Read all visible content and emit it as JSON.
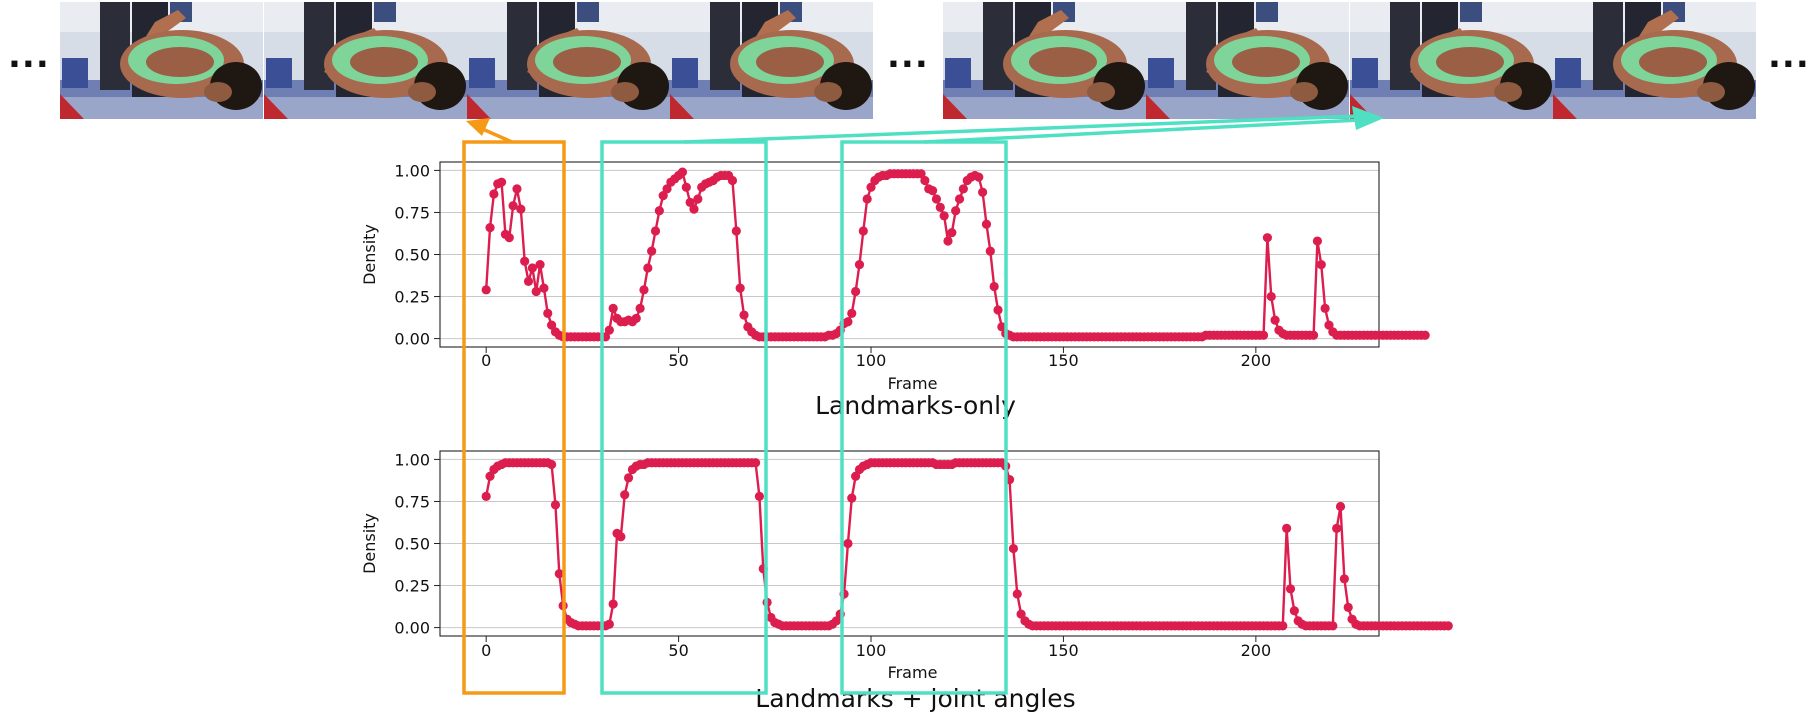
{
  "strip": {
    "ellipsis": "...",
    "frames": [
      {
        "id": "frame-1"
      },
      {
        "id": "frame-2"
      },
      {
        "id": "frame-3"
      },
      {
        "id": "frame-4"
      },
      {
        "id": "frame-5"
      },
      {
        "id": "frame-6"
      },
      {
        "id": "frame-7"
      },
      {
        "id": "frame-8"
      }
    ]
  },
  "colors": {
    "series": "#dc1e4f",
    "orange_box": "#f59a16",
    "teal_box": "#4fe0c3"
  },
  "chart_data": [
    {
      "type": "line",
      "title": "Landmarks-only",
      "xlabel": "Frame",
      "ylabel": "Density",
      "xlim": [
        -12,
        232
      ],
      "ylim": [
        -0.05,
        1.05
      ],
      "xticks": [
        0,
        50,
        100,
        150,
        200
      ],
      "yticks": [
        "0.00",
        "0.25",
        "0.50",
        "0.75",
        "1.00"
      ],
      "grid": "horizontal",
      "series": [
        {
          "y": [
            0.29,
            0.66,
            0.86,
            0.92,
            0.93,
            0.62,
            0.6,
            0.79,
            0.89,
            0.77,
            0.46,
            0.34,
            0.42,
            0.28,
            0.44,
            0.3,
            0.15,
            0.08,
            0.04,
            0.02,
            0.01,
            0.01,
            0.01,
            0.01,
            0.01,
            0.01,
            0.01,
            0.01,
            0.01,
            0.01,
            0.01,
            0.01,
            0.05,
            0.18,
            0.12,
            0.1,
            0.1,
            0.11,
            0.1,
            0.12,
            0.18,
            0.29,
            0.42,
            0.52,
            0.64,
            0.76,
            0.85,
            0.89,
            0.93,
            0.95,
            0.97,
            0.99,
            0.9,
            0.81,
            0.77,
            0.83,
            0.9,
            0.92,
            0.93,
            0.94,
            0.96,
            0.97,
            0.97,
            0.97,
            0.94,
            0.64,
            0.3,
            0.14,
            0.07,
            0.04,
            0.02,
            0.01,
            0.01,
            0.01,
            0.01,
            0.01,
            0.01,
            0.01,
            0.01,
            0.01,
            0.01,
            0.01,
            0.01,
            0.01,
            0.01,
            0.01,
            0.01,
            0.01,
            0.01,
            0.02,
            0.02,
            0.03,
            0.05,
            0.09,
            0.1,
            0.15,
            0.28,
            0.44,
            0.64,
            0.83,
            0.9,
            0.94,
            0.96,
            0.97,
            0.97,
            0.98,
            0.98,
            0.98,
            0.98,
            0.98,
            0.98,
            0.98,
            0.98,
            0.98,
            0.94,
            0.89,
            0.88,
            0.83,
            0.78,
            0.73,
            0.58,
            0.63,
            0.76,
            0.83,
            0.89,
            0.94,
            0.96,
            0.97,
            0.96,
            0.87,
            0.68,
            0.52,
            0.31,
            0.17,
            0.07,
            0.03,
            0.02,
            0.01,
            0.01,
            0.01,
            0.01,
            0.01,
            0.01,
            0.01,
            0.01,
            0.01,
            0.01,
            0.01,
            0.01,
            0.01,
            0.01,
            0.01,
            0.01,
            0.01,
            0.01,
            0.01,
            0.01,
            0.01,
            0.01,
            0.01,
            0.01,
            0.01,
            0.01,
            0.01,
            0.01,
            0.01,
            0.01,
            0.01,
            0.01,
            0.01,
            0.01,
            0.01,
            0.01,
            0.01,
            0.01,
            0.01,
            0.01,
            0.01,
            0.01,
            0.01,
            0.01,
            0.01,
            0.01,
            0.01,
            0.01,
            0.01,
            0.01,
            0.02,
            0.02,
            0.02,
            0.02,
            0.02,
            0.02,
            0.02,
            0.02,
            0.02,
            0.02,
            0.02,
            0.02,
            0.02,
            0.02,
            0.02,
            0.02,
            0.6,
            0.25,
            0.11,
            0.05,
            0.03,
            0.02,
            0.02,
            0.02,
            0.02,
            0.02,
            0.02,
            0.02,
            0.02,
            0.58,
            0.44,
            0.18,
            0.08,
            0.04,
            0.02,
            0.02,
            0.02,
            0.02,
            0.02,
            0.02,
            0.02,
            0.02,
            0.02,
            0.02,
            0.02,
            0.02,
            0.02,
            0.02,
            0.02,
            0.02,
            0.02,
            0.02,
            0.02,
            0.02,
            0.02,
            0.02,
            0.02,
            0.02
          ]
        }
      ]
    },
    {
      "type": "line",
      "title": "Landmarks + joint angles",
      "xlabel": "Frame",
      "ylabel": "Density",
      "xlim": [
        -12,
        232
      ],
      "ylim": [
        -0.05,
        1.05
      ],
      "xticks": [
        0,
        50,
        100,
        150,
        200
      ],
      "yticks": [
        "0.00",
        "0.25",
        "0.50",
        "0.75",
        "1.00"
      ],
      "grid": "horizontal",
      "series": [
        {
          "y": [
            0.78,
            0.9,
            0.94,
            0.96,
            0.97,
            0.98,
            0.98,
            0.98,
            0.98,
            0.98,
            0.98,
            0.98,
            0.98,
            0.98,
            0.98,
            0.98,
            0.98,
            0.97,
            0.73,
            0.32,
            0.13,
            0.05,
            0.03,
            0.02,
            0.01,
            0.01,
            0.01,
            0.01,
            0.01,
            0.01,
            0.01,
            0.01,
            0.02,
            0.14,
            0.56,
            0.54,
            0.79,
            0.89,
            0.94,
            0.96,
            0.97,
            0.97,
            0.98,
            0.98,
            0.98,
            0.98,
            0.98,
            0.98,
            0.98,
            0.98,
            0.98,
            0.98,
            0.98,
            0.98,
            0.98,
            0.98,
            0.98,
            0.98,
            0.98,
            0.98,
            0.98,
            0.98,
            0.98,
            0.98,
            0.98,
            0.98,
            0.98,
            0.98,
            0.98,
            0.98,
            0.98,
            0.78,
            0.35,
            0.15,
            0.06,
            0.03,
            0.02,
            0.01,
            0.01,
            0.01,
            0.01,
            0.01,
            0.01,
            0.01,
            0.01,
            0.01,
            0.01,
            0.01,
            0.01,
            0.01,
            0.02,
            0.04,
            0.08,
            0.2,
            0.5,
            0.77,
            0.9,
            0.94,
            0.96,
            0.97,
            0.98,
            0.98,
            0.98,
            0.98,
            0.98,
            0.98,
            0.98,
            0.98,
            0.98,
            0.98,
            0.98,
            0.98,
            0.98,
            0.98,
            0.98,
            0.98,
            0.98,
            0.97,
            0.97,
            0.97,
            0.97,
            0.97,
            0.98,
            0.98,
            0.98,
            0.98,
            0.98,
            0.98,
            0.98,
            0.98,
            0.98,
            0.98,
            0.98,
            0.98,
            0.98,
            0.96,
            0.88,
            0.47,
            0.2,
            0.08,
            0.04,
            0.02,
            0.01,
            0.01,
            0.01,
            0.01,
            0.01,
            0.01,
            0.01,
            0.01,
            0.01,
            0.01,
            0.01,
            0.01,
            0.01,
            0.01,
            0.01,
            0.01,
            0.01,
            0.01,
            0.01,
            0.01,
            0.01,
            0.01,
            0.01,
            0.01,
            0.01,
            0.01,
            0.01,
            0.01,
            0.01,
            0.01,
            0.01,
            0.01,
            0.01,
            0.01,
            0.01,
            0.01,
            0.01,
            0.01,
            0.01,
            0.01,
            0.01,
            0.01,
            0.01,
            0.01,
            0.01,
            0.01,
            0.01,
            0.01,
            0.01,
            0.01,
            0.01,
            0.01,
            0.01,
            0.01,
            0.01,
            0.01,
            0.01,
            0.01,
            0.01,
            0.01,
            0.01,
            0.01,
            0.01,
            0.01,
            0.01,
            0.01,
            0.59,
            0.23,
            0.1,
            0.04,
            0.02,
            0.01,
            0.01,
            0.01,
            0.01,
            0.01,
            0.01,
            0.01,
            0.01,
            0.59,
            0.72,
            0.29,
            0.12,
            0.05,
            0.02,
            0.01,
            0.01,
            0.01,
            0.01,
            0.01,
            0.01,
            0.01,
            0.01,
            0.01,
            0.01,
            0.01,
            0.01,
            0.01,
            0.01,
            0.01,
            0.01,
            0.01,
            0.01,
            0.01,
            0.01,
            0.01,
            0.01,
            0.01,
            0.01
          ]
        }
      ]
    }
  ]
}
